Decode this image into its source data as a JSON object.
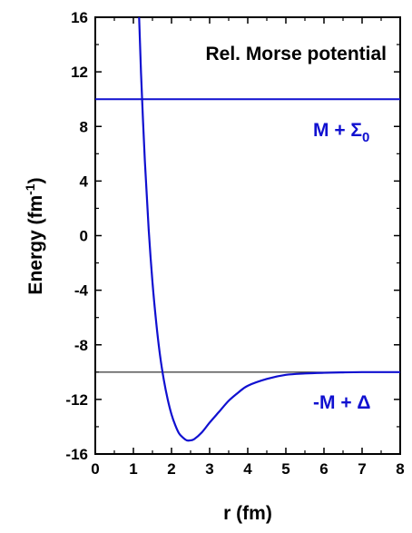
{
  "chart_data": {
    "type": "line",
    "title": "Rel. Morse potential",
    "xlabel": "r (fm)",
    "ylabel": "Energy (fm",
    "ylabel_sup": "-1",
    "ylabel_close": ")",
    "xlim": [
      0,
      8
    ],
    "ylim": [
      -16,
      16
    ],
    "xticks": [
      0,
      1,
      2,
      3,
      4,
      5,
      6,
      7,
      8
    ],
    "yticks": [
      -16,
      -12,
      -8,
      -4,
      0,
      4,
      8,
      12,
      16
    ],
    "ytick_labels": [
      "-16",
      "-12",
      "-8",
      "-4",
      "0",
      "4",
      "8",
      "12",
      "16"
    ],
    "grid": false,
    "colors": {
      "curve": "#1010d0",
      "upper_line": "#1010d0",
      "lower_line": "#000000",
      "annotation": "#1010d0"
    },
    "series": [
      {
        "x": [
          1.15,
          1.2,
          1.3,
          1.4,
          1.5,
          1.6,
          1.7,
          1.8,
          1.9,
          2.0,
          2.1,
          2.2,
          2.3,
          2.4,
          2.5,
          2.6,
          2.8,
          3.0,
          3.25,
          3.5,
          3.75,
          4.0,
          4.5,
          5.0,
          5.5,
          6.0,
          6.5,
          7.0,
          7.5,
          8.0
        ],
        "y": [
          16.0,
          11.9,
          5.5,
          0.5,
          -3.4,
          -6.4,
          -8.8,
          -10.6,
          -12.0,
          -13.1,
          -13.9,
          -14.5,
          -14.8,
          -15.0,
          -15.0,
          -14.9,
          -14.4,
          -13.7,
          -12.9,
          -12.1,
          -11.5,
          -11.0,
          -10.5,
          -10.2,
          -10.1,
          -10.05,
          -10.02,
          -10.0,
          -10.0,
          -10.0
        ]
      },
      {
        "x": [
          0,
          8
        ],
        "y": [
          10,
          10
        ]
      },
      {
        "x": [
          0,
          8
        ],
        "y": [
          -10,
          -10
        ]
      }
    ],
    "annotations": {
      "upper_main": "M + Σ",
      "upper_sub": "0",
      "lower": "-M + Δ"
    }
  }
}
